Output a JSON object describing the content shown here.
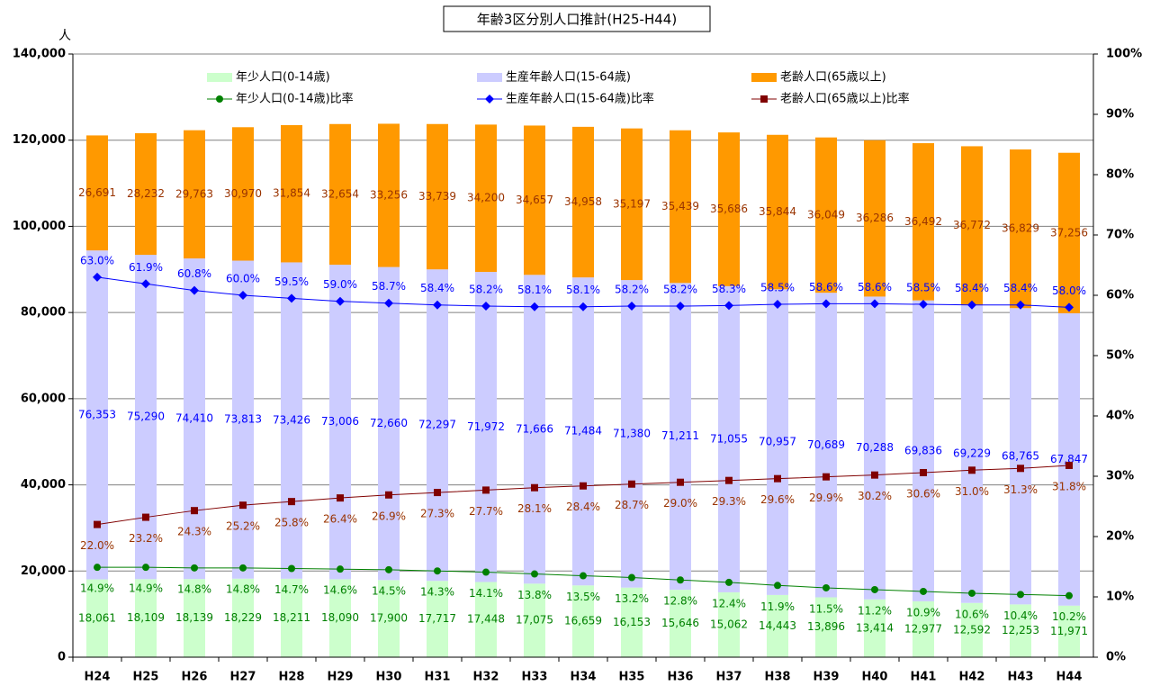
{
  "chart_data": {
    "type": "bar",
    "title": "年齢3区分別人口推計(H25-H44)",
    "y_label": "人",
    "categories": [
      "H24",
      "H25",
      "H26",
      "H27",
      "H28",
      "H29",
      "H30",
      "H31",
      "H32",
      "H33",
      "H34",
      "H35",
      "H36",
      "H37",
      "H38",
      "H39",
      "H40",
      "H41",
      "H42",
      "H43",
      "H44"
    ],
    "ylim": [
      0,
      140000
    ],
    "yticks": [
      0,
      {
        "value": 20000,
        "label": "20,000"
      },
      {
        "value": 40000,
        "label": "40,000"
      },
      {
        "value": 60000,
        "label": "60,000"
      },
      {
        "value": 80000,
        "label": "80,000"
      },
      {
        "value": 100000,
        "label": "100,000"
      },
      {
        "value": 120000,
        "label": "120,000"
      },
      {
        "value": 140000,
        "label": "140,000"
      }
    ],
    "y2lim": [
      0,
      100
    ],
    "y2ticks": [
      {
        "value": 0,
        "label": "0%"
      },
      {
        "value": 10,
        "label": "10%"
      },
      {
        "value": 20,
        "label": "20%"
      },
      {
        "value": 30,
        "label": "30%"
      },
      {
        "value": 40,
        "label": "40%"
      },
      {
        "value": 50,
        "label": "50%"
      },
      {
        "value": 60,
        "label": "60%"
      },
      {
        "value": 70,
        "label": "70%"
      },
      {
        "value": 80,
        "label": "80%"
      },
      {
        "value": 90,
        "label": "90%"
      },
      {
        "value": 100,
        "label": "100%"
      }
    ],
    "grid": true,
    "stacked": true,
    "series": [
      {
        "name": "年少人口(0-14歳)",
        "type": "bar",
        "color": "#ccffcc",
        "label_color": "#008000",
        "values": [
          18061,
          18109,
          18139,
          18229,
          18211,
          18090,
          17900,
          17717,
          17448,
          17075,
          16659,
          16153,
          15646,
          15062,
          14443,
          13896,
          13414,
          12977,
          12592,
          12253,
          11971
        ],
        "value_labels": [
          "18,061",
          "18,109",
          "18,139",
          "18,229",
          "18,211",
          "18,090",
          "17,900",
          "17,717",
          "17,448",
          "17,075",
          "16,659",
          "16,153",
          "15,646",
          "15,062",
          "14,443",
          "13,896",
          "13,414",
          "12,977",
          "12,592",
          "12,253",
          "11,971"
        ]
      },
      {
        "name": "生産年齢人口(15-64歳)",
        "type": "bar",
        "color": "#ccccff",
        "label_color": "#0000ff",
        "values": [
          76353,
          75290,
          74410,
          73813,
          73426,
          73006,
          72660,
          72297,
          71972,
          71666,
          71484,
          71380,
          71211,
          71055,
          70957,
          70689,
          70288,
          69836,
          69229,
          68765,
          67847
        ],
        "value_labels": [
          "76,353",
          "75,290",
          "74,410",
          "73,813",
          "73,426",
          "73,006",
          "72,660",
          "72,297",
          "71,972",
          "71,666",
          "71,484",
          "71,380",
          "71,211",
          "71,055",
          "70,957",
          "70,689",
          "70,288",
          "69,836",
          "69,229",
          "68,765",
          "67,847"
        ]
      },
      {
        "name": "老齢人口(65歳以上)",
        "type": "bar",
        "color": "#ff9900",
        "label_color": "#993300",
        "values": [
          26691,
          28232,
          29763,
          30970,
          31854,
          32654,
          33256,
          33739,
          34200,
          34657,
          34958,
          35197,
          35439,
          35686,
          35844,
          36049,
          36286,
          36492,
          36772,
          36829,
          37256
        ],
        "value_labels": [
          "26,691",
          "28,232",
          "29,763",
          "30,970",
          "31,854",
          "32,654",
          "33,256",
          "33,739",
          "34,200",
          "34,657",
          "34,958",
          "35,197",
          "35,439",
          "35,686",
          "35,844",
          "36,049",
          "36,286",
          "36,492",
          "36,772",
          "36,829",
          "37,256"
        ]
      },
      {
        "name": "年少人口(0-14歳)比率",
        "type": "line",
        "axis": "y2",
        "color": "#008000",
        "label_color": "#008000",
        "marker": "circle",
        "values": [
          14.9,
          14.9,
          14.8,
          14.8,
          14.7,
          14.6,
          14.5,
          14.3,
          14.1,
          13.8,
          13.5,
          13.2,
          12.8,
          12.4,
          11.9,
          11.5,
          11.2,
          10.9,
          10.6,
          10.4,
          10.2
        ],
        "value_labels": [
          "14.9%",
          "14.9%",
          "14.8%",
          "14.8%",
          "14.7%",
          "14.6%",
          "14.5%",
          "14.3%",
          "14.1%",
          "13.8%",
          "13.5%",
          "13.2%",
          "12.8%",
          "12.4%",
          "11.9%",
          "11.5%",
          "11.2%",
          "10.9%",
          "10.6%",
          "10.4%",
          "10.2%"
        ]
      },
      {
        "name": "生産年齢人口(15-64歳)比率",
        "type": "line",
        "axis": "y2",
        "color": "#0000ff",
        "label_color": "#0000ff",
        "marker": "diamond",
        "values": [
          63.0,
          61.9,
          60.8,
          60.0,
          59.5,
          59.0,
          58.7,
          58.4,
          58.2,
          58.1,
          58.1,
          58.2,
          58.2,
          58.3,
          58.5,
          58.6,
          58.6,
          58.5,
          58.4,
          58.4,
          58.0
        ],
        "value_labels": [
          "63.0%",
          "61.9%",
          "60.8%",
          "60.0%",
          "59.5%",
          "59.0%",
          "58.7%",
          "58.4%",
          "58.2%",
          "58.1%",
          "58.1%",
          "58.2%",
          "58.2%",
          "58.3%",
          "58.5%",
          "58.6%",
          "58.6%",
          "58.5%",
          "58.4%",
          "58.4%",
          "58.0%"
        ]
      },
      {
        "name": "老齢人口(65歳以上)比率",
        "type": "line",
        "axis": "y2",
        "color": "#800000",
        "label_color": "#993300",
        "marker": "square",
        "values": [
          22.0,
          23.2,
          24.3,
          25.2,
          25.8,
          26.4,
          26.9,
          27.3,
          27.7,
          28.1,
          28.4,
          28.7,
          29.0,
          29.3,
          29.6,
          29.9,
          30.2,
          30.6,
          31.0,
          31.3,
          31.8
        ],
        "value_labels": [
          "22.0%",
          "23.2%",
          "24.3%",
          "25.2%",
          "25.8%",
          "26.4%",
          "26.9%",
          "27.3%",
          "27.7%",
          "28.1%",
          "28.4%",
          "28.7%",
          "29.0%",
          "29.3%",
          "29.6%",
          "29.9%",
          "30.2%",
          "30.6%",
          "31.0%",
          "31.3%",
          "31.8%"
        ]
      }
    ]
  }
}
